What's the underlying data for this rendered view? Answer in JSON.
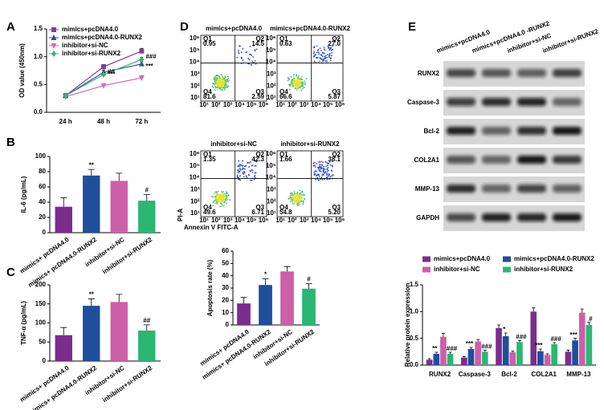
{
  "panel_labels": [
    "A",
    "B",
    "C",
    "D",
    "E"
  ],
  "chart_data": [
    {
      "type": "line",
      "y_label": "OD value (450nm)",
      "categories": [
        "24 h",
        "48 h",
        "72 h"
      ],
      "ylim": [
        0,
        1.5
      ],
      "yticks": [
        {
          "value": 0,
          "label": "0.0"
        },
        {
          "value": 0.5,
          "label": "0.5"
        },
        {
          "value": 1,
          "label": "1.0"
        },
        {
          "value": 1.5,
          "label": "1.5"
        }
      ],
      "series": [
        {
          "name": "mimics+pcDNA4.0",
          "color": "#7b3fa0",
          "marker": "square",
          "values": [
            0.3,
            0.82,
            1.1
          ],
          "errors": [
            0.03,
            0.04,
            0.05
          ]
        },
        {
          "name": "mimics+pcDNA4.0-RUNX2",
          "color": "#2f4f9f",
          "marker": "triangle",
          "values": [
            0.3,
            0.72,
            0.87
          ],
          "errors": [
            0.03,
            0.04,
            0.04
          ],
          "annotations": [
            null,
            "***",
            "***"
          ]
        },
        {
          "name": "inhibitor+si-NC",
          "color": "#d06bb4",
          "marker": "triangle-down",
          "values": [
            0.28,
            0.48,
            0.62
          ],
          "errors": [
            0.02,
            0.03,
            0.04
          ]
        },
        {
          "name": "inhibitor+si-RUNX2",
          "color": "#3cb371",
          "marker": "diamond",
          "values": [
            0.3,
            0.68,
            0.95
          ],
          "errors": [
            0.03,
            0.04,
            0.04
          ],
          "annotations": [
            null,
            "##",
            "###"
          ]
        }
      ]
    },
    {
      "type": "bar",
      "y_label": "IL-6 (pg/mL)",
      "categories": [
        "mimics+ pcDNA4.0",
        "mimics+ pcDNA4.0-RUNX2",
        "inhibitor+si-NC",
        "inhibitor+si-RUNX2"
      ],
      "values": [
        34,
        75,
        68,
        42
      ],
      "errors": [
        12,
        8,
        10,
        8
      ],
      "annotations": [
        null,
        "**",
        null,
        "#"
      ],
      "colors": [
        "#7b2d8e",
        "#1f4e9c",
        "#cc5fa8",
        "#2bb673"
      ],
      "ylim": [
        0,
        100
      ],
      "yticks": [
        0,
        20,
        40,
        60,
        80,
        100
      ]
    },
    {
      "type": "bar",
      "y_label": "TNF-α (pg/mL)",
      "categories": [
        "mimics+ pcDNA4.0",
        "mimics+ pcDNA4.0-RUNX2",
        "inhibitor+si-NC",
        "inhibitor+si-RUNX2"
      ],
      "values": [
        68,
        145,
        155,
        80
      ],
      "errors": [
        20,
        18,
        20,
        15
      ],
      "annotations": [
        null,
        "**",
        null,
        "##"
      ],
      "colors": [
        "#7b2d8e",
        "#1f4e9c",
        "#cc5fa8",
        "#2bb673"
      ],
      "ylim": [
        0,
        200
      ],
      "yticks": [
        0,
        50,
        100,
        150,
        200
      ]
    },
    {
      "type": "bar",
      "y_label": "Apoptosis rate (%)",
      "categories": [
        "mimics+ pcDNA4.0",
        "mimics+ pcDNA4.0-RUNX2",
        "inhibitor+si-NC",
        "inhibitor+si-RUNX2"
      ],
      "values": [
        17.5,
        32.5,
        43.5,
        29.5
      ],
      "errors": [
        5,
        5,
        4,
        4
      ],
      "annotations": [
        null,
        "*",
        null,
        "#"
      ],
      "colors": [
        "#7b2d8e",
        "#1f4e9c",
        "#cc5fa8",
        "#2bb673"
      ],
      "ylim": [
        0,
        60
      ],
      "yticks": [
        0,
        10,
        20,
        30,
        40,
        50,
        60
      ]
    },
    {
      "type": "grouped-bar",
      "y_label": "Relative protein expression",
      "categories": [
        "RUNX2",
        "Caspase-3",
        "Bcl-2",
        "COL2A1",
        "MMP-13"
      ],
      "ylim": [
        0,
        1.5
      ],
      "yticks": [
        {
          "value": 0,
          "label": "0.0"
        },
        {
          "value": 0.5,
          "label": "0.5"
        },
        {
          "value": 1,
          "label": "1.0"
        },
        {
          "value": 1.5,
          "label": "1.5"
        }
      ],
      "series": [
        {
          "name": "mimics+pcDNA4.0",
          "color": "#7b2d8e",
          "values": [
            0.1,
            0.14,
            0.69,
            1.0,
            0.25
          ],
          "errors": [
            0.02,
            0.02,
            0.06,
            0.07,
            0.03
          ]
        },
        {
          "name": "mimics+pcDNA4.0-RUNX2",
          "color": "#1f4e9c",
          "values": [
            0.21,
            0.3,
            0.54,
            0.26,
            0.46
          ],
          "errors": [
            0.03,
            0.03,
            0.06,
            0.04,
            0.04
          ],
          "annotations": [
            "**",
            "***",
            "*",
            "***",
            "***"
          ]
        },
        {
          "name": "inhibitor+si-NC",
          "color": "#cc5fa8",
          "values": [
            0.53,
            0.44,
            0.24,
            0.19,
            0.98
          ],
          "errors": [
            0.06,
            0.04,
            0.02,
            0.02,
            0.07
          ]
        },
        {
          "name": "inhibitor+si-RUNX2",
          "color": "#2bb673",
          "values": [
            0.21,
            0.25,
            0.43,
            0.39,
            0.75
          ],
          "errors": [
            0.03,
            0.03,
            0.03,
            0.03,
            0.05
          ],
          "annotations": [
            "###",
            "###",
            "###",
            "###",
            "#"
          ]
        }
      ]
    }
  ],
  "flow_cytometry": {
    "x_label": "Annexin V FITC-A",
    "y_label": "PI-A",
    "axis_ticks": [
      "10¹",
      "10²",
      "10³",
      "10⁴",
      "10⁵",
      "10⁶"
    ],
    "quadrant_names": [
      "Q1",
      "Q2",
      "Q3",
      "Q4"
    ],
    "plots": [
      {
        "title": "mimics+pcDNA4.0",
        "quadrants": [
          "0.95",
          "14.5",
          "2.59",
          "81.6"
        ]
      },
      {
        "title": "mimics+pcDNA4.0-RUNX2",
        "quadrants": [
          "0.63",
          "27.0",
          "5.87",
          "66.6"
        ]
      },
      {
        "title": "inhibitor+si-NC",
        "quadrants": [
          "1.35",
          "42.3",
          "6.71",
          "49.6"
        ]
      },
      {
        "title": "inhibitor+si-RUNX2",
        "quadrants": [
          "1.66",
          "38.1",
          "5.20",
          "54.8"
        ]
      }
    ]
  },
  "western_blot": {
    "columns": [
      "mimics+pcDNA4.0",
      "mimics+pcDNA4.0 -RUNX2",
      "inhibitor+si-NC",
      "inhibitor+si-RUNX2"
    ],
    "rows": [
      "RUNX2",
      "Caspase-3",
      "Bcl-2",
      "COL2A1",
      "MMP-13",
      "GAPDH"
    ]
  }
}
